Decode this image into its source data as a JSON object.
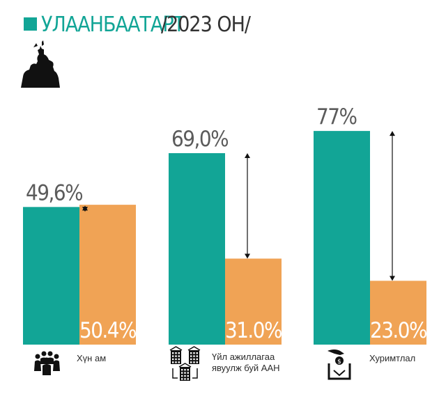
{
  "header": {
    "title": "УЛААНБААТАРТ",
    "subtitle": "/2023 ОН/",
    "accent_color": "#12a596",
    "icon": "equestrian-statue-icon"
  },
  "colors": {
    "teal": "#12a596",
    "orange": "#f0a355",
    "value_text": "#5b5b5b",
    "bar_text": "#ffffff"
  },
  "chart_data": {
    "type": "bar",
    "title": "УЛААНБААТАРТ /2023 ОН/",
    "categories": [
      "Хүн ам",
      "Үйл ажиллагаа явуулж буй ААН",
      "Хуримтлал"
    ],
    "series": [
      {
        "values": [
          49.6,
          69.0,
          77
        ]
      },
      {
        "values": [
          50.4,
          31.0,
          23.0
        ]
      }
    ],
    "value_labels": {
      "teal": [
        "49,6%",
        "69,0%",
        "77%"
      ],
      "orange": [
        "50.4%",
        "31.0%",
        "23.0%"
      ]
    },
    "ylim": [
      0,
      100
    ],
    "grid": false,
    "legend": "none"
  },
  "groups": [
    {
      "label_lines": [
        "Хүн ам"
      ],
      "icon": "people-group-icon"
    },
    {
      "label_lines": [
        "Үйл ажиллагаа",
        "явуулж буй  ААН"
      ],
      "icon": "buildings-icon"
    },
    {
      "label_lines": [
        "Хуримтлал"
      ],
      "icon": "savings-box-icon"
    }
  ]
}
